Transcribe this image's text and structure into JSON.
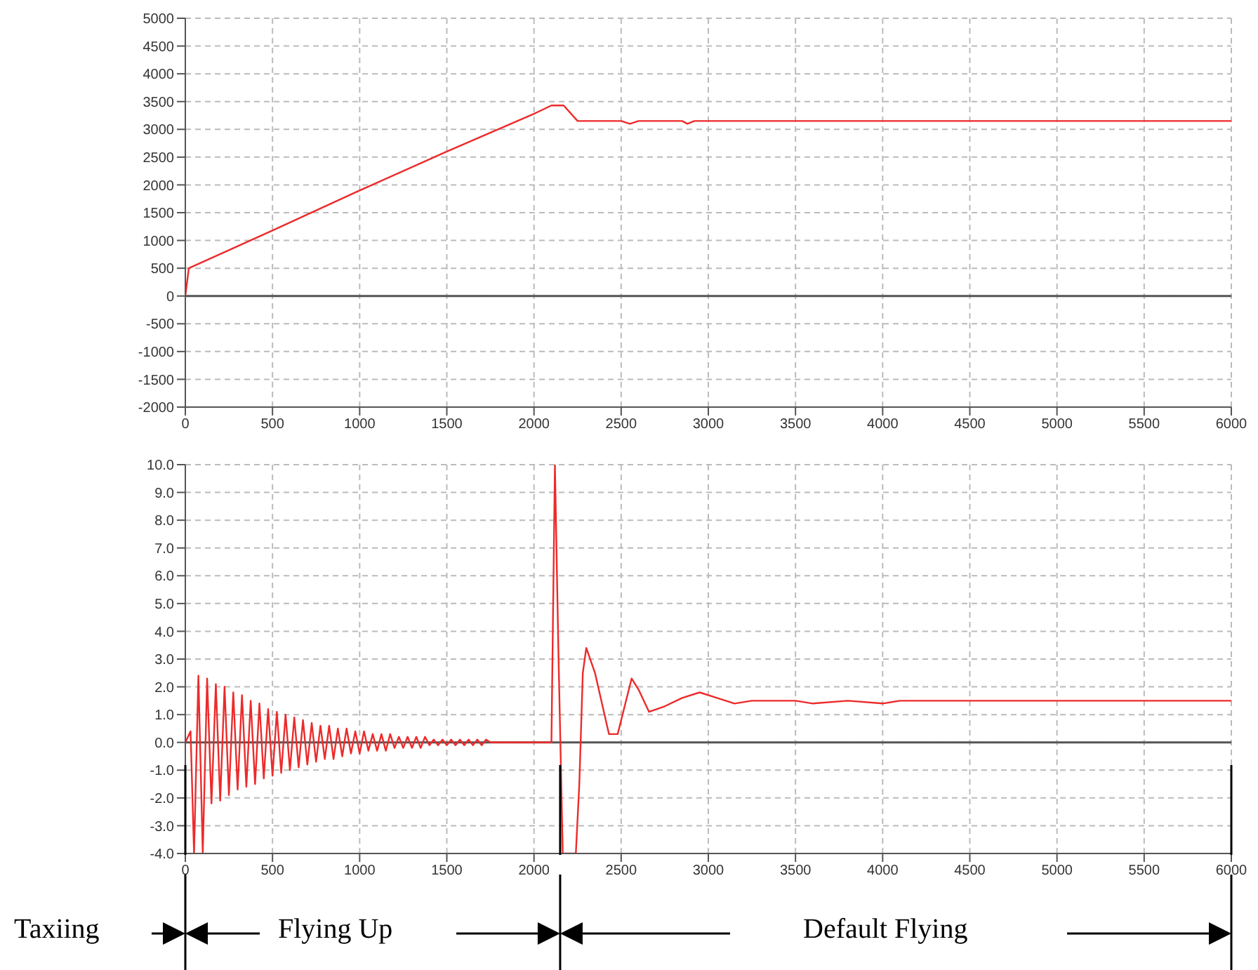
{
  "chart_data": [
    {
      "type": "line",
      "x": [
        0,
        20,
        500,
        1000,
        1500,
        2000,
        2100,
        2170,
        2250,
        2500,
        2550,
        2600,
        2850,
        2880,
        2920,
        6000
      ],
      "series": [
        {
          "color": "#ee2a2a",
          "values": [
            0,
            500,
            1180,
            1900,
            2600,
            3280,
            3430,
            3430,
            3150,
            3150,
            3100,
            3150,
            3150,
            3100,
            3150,
            3150
          ]
        }
      ],
      "xlim": [
        0,
        6000
      ],
      "xticks": [
        0,
        500,
        1000,
        1500,
        2000,
        2500,
        3000,
        3500,
        4000,
        4500,
        5000,
        5500,
        6000
      ],
      "ylim": [
        -2000,
        5000
      ],
      "yticks": [
        -2000,
        -1500,
        -1000,
        -500,
        0,
        500,
        1000,
        1500,
        2000,
        2500,
        3000,
        3500,
        4000,
        4500,
        5000
      ],
      "ref_lines": [
        {
          "axis": "y",
          "value": 0,
          "color": "#555555"
        }
      ],
      "grid": true,
      "marker": "none",
      "line_style": "solid"
    },
    {
      "type": "line",
      "x": [
        0,
        30,
        50,
        75,
        100,
        125,
        150,
        175,
        200,
        225,
        250,
        275,
        300,
        325,
        350,
        375,
        400,
        425,
        450,
        475,
        500,
        525,
        550,
        575,
        600,
        625,
        650,
        675,
        700,
        725,
        750,
        775,
        800,
        825,
        850,
        875,
        900,
        925,
        950,
        975,
        1000,
        1025,
        1050,
        1075,
        1100,
        1125,
        1150,
        1175,
        1200,
        1225,
        1250,
        1275,
        1300,
        1325,
        1350,
        1375,
        1400,
        1425,
        1450,
        1475,
        1500,
        1525,
        1550,
        1575,
        1600,
        1625,
        1650,
        1675,
        1700,
        1725,
        1750,
        1800,
        2100,
        2120,
        2140,
        2165,
        2240,
        2260,
        2280,
        2300,
        2350,
        2430,
        2480,
        2560,
        2600,
        2660,
        2750,
        2850,
        2950,
        3050,
        3150,
        3250,
        3500,
        3600,
        3800,
        4000,
        4100,
        6000
      ],
      "series": [
        {
          "color": "#ee2a2a",
          "values": [
            0,
            0.4,
            -4,
            2.4,
            -4,
            2.3,
            -2.2,
            2.1,
            -2.1,
            2.0,
            -1.9,
            1.8,
            -1.7,
            1.7,
            -1.6,
            1.5,
            -1.5,
            1.4,
            -1.3,
            1.2,
            -1.2,
            1.1,
            -1.1,
            1.0,
            -1.0,
            0.9,
            -0.9,
            0.8,
            -0.8,
            0.7,
            -0.7,
            0.6,
            -0.6,
            0.6,
            -0.6,
            0.5,
            -0.5,
            0.5,
            -0.4,
            0.4,
            -0.4,
            0.4,
            -0.3,
            0.3,
            -0.3,
            0.3,
            -0.3,
            0.3,
            -0.2,
            0.2,
            -0.2,
            0.2,
            -0.2,
            0.2,
            -0.2,
            0.2,
            -0.1,
            0.1,
            -0.1,
            0.1,
            -0.1,
            0.1,
            -0.1,
            0.1,
            -0.1,
            0.1,
            -0.1,
            0.1,
            -0.1,
            0.1,
            0,
            0,
            0,
            10,
            3.3,
            -4,
            -4,
            -1.5,
            2.5,
            3.4,
            2.5,
            0.3,
            0.3,
            2.3,
            1.9,
            1.1,
            1.3,
            1.6,
            1.8,
            1.6,
            1.4,
            1.5,
            1.5,
            1.4,
            1.5,
            1.4,
            1.5,
            1.5
          ]
        }
      ],
      "xlim": [
        0,
        6000
      ],
      "xticks": [
        0,
        500,
        1000,
        1500,
        2000,
        2500,
        3000,
        3500,
        4000,
        4500,
        5000,
        5500,
        6000
      ],
      "ylim": [
        -4,
        10
      ],
      "yticks": [
        {
          "value": -4,
          "label": "-4.0"
        },
        {
          "value": -3,
          "label": "-3.0"
        },
        {
          "value": -2,
          "label": "-2.0"
        },
        {
          "value": -1,
          "label": "-1.0"
        },
        {
          "value": 0,
          "label": "0.0"
        },
        {
          "value": 1,
          "label": "1.0"
        },
        {
          "value": 2,
          "label": "2.0"
        },
        {
          "value": 3,
          "label": "3.0"
        },
        {
          "value": 4,
          "label": "4.0"
        },
        {
          "value": 5,
          "label": "5.0"
        },
        {
          "value": 6,
          "label": "6.0"
        },
        {
          "value": 7,
          "label": "7.0"
        },
        {
          "value": 8,
          "label": "8.0"
        },
        {
          "value": 9,
          "label": "9.0"
        },
        {
          "value": 10,
          "label": "10.0"
        }
      ],
      "ref_lines": [
        {
          "axis": "y",
          "value": 0,
          "color": "#555555"
        },
        {
          "axis": "x",
          "value": 0,
          "color": "#000000"
        },
        {
          "axis": "x",
          "value": 2150,
          "color": "#000000"
        },
        {
          "axis": "x",
          "value": 6000,
          "color": "#000000"
        }
      ],
      "annotations": [
        "Taxiing",
        "Flying Up",
        "Default Flying"
      ],
      "grid": true,
      "marker": "none",
      "line_style": "solid"
    }
  ]
}
